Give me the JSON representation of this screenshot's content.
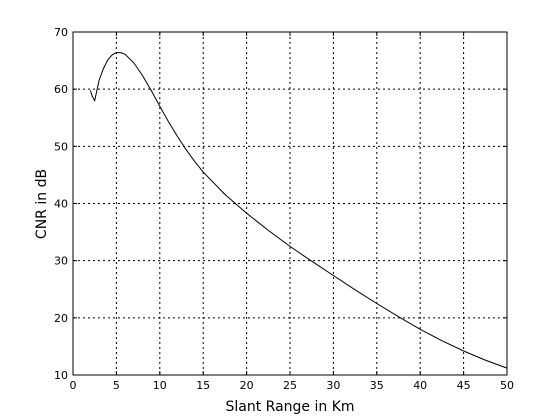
{
  "chart_data": {
    "type": "line",
    "xlabel": "Slant Range in Km",
    "ylabel": "CNR in dB",
    "xlim": [
      0,
      50
    ],
    "ylim": [
      10,
      70
    ],
    "xticks": [
      0,
      5,
      10,
      15,
      20,
      25,
      30,
      35,
      40,
      45,
      50
    ],
    "yticks": [
      10,
      20,
      30,
      40,
      50,
      60,
      70
    ],
    "grid": true,
    "legend": "none",
    "series": [
      {
        "x": [
          2.0,
          2.2,
          2.5,
          3.0,
          3.5,
          4.0,
          4.5,
          5.0,
          5.5,
          6.0,
          7.0,
          8.0,
          9.0,
          10.0,
          11.0,
          12.0,
          13.0,
          14.0,
          15.0,
          17.5,
          20.0,
          22.5,
          25.0,
          27.5,
          30.0,
          32.5,
          35.0,
          37.5,
          40.0,
          42.5,
          45.0,
          47.5,
          50.0
        ],
        "y": [
          59.8,
          58.8,
          58.0,
          61.5,
          63.6,
          65.1,
          66.0,
          66.4,
          66.4,
          66.1,
          64.6,
          62.4,
          59.8,
          57.0,
          54.3,
          51.8,
          49.5,
          47.4,
          45.5,
          41.6,
          38.3,
          35.3,
          32.5,
          29.9,
          27.4,
          24.9,
          22.5,
          20.2,
          18.0,
          16.0,
          14.2,
          12.6,
          11.2
        ]
      }
    ]
  }
}
